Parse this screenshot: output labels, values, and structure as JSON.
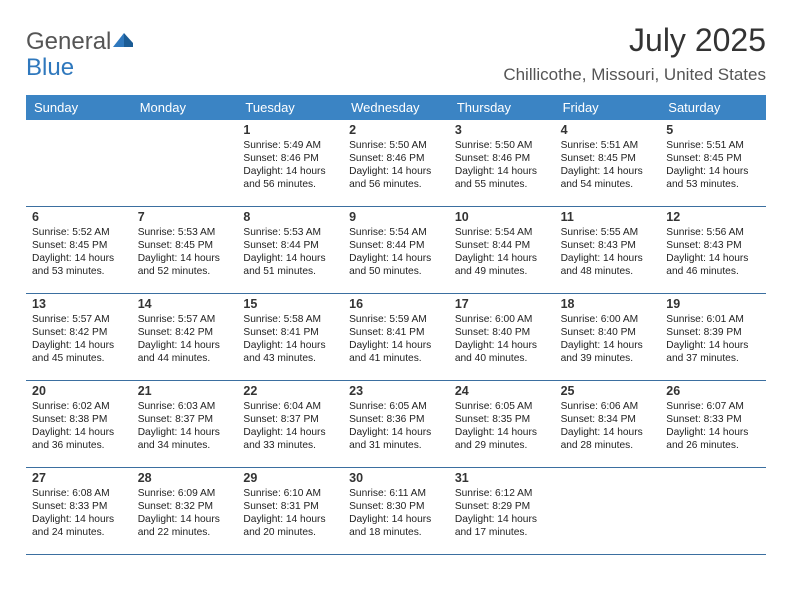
{
  "logo": {
    "word1": "General",
    "word2": "Blue"
  },
  "title": "July 2025",
  "location": "Chillicothe, Missouri, United States",
  "colors": {
    "header_bg": "#3b84c4",
    "header_text": "#ffffff",
    "rule": "#3b6fa0",
    "logo_blue": "#2f78bd"
  },
  "day_headers": [
    "Sunday",
    "Monday",
    "Tuesday",
    "Wednesday",
    "Thursday",
    "Friday",
    "Saturday"
  ],
  "weeks": [
    [
      null,
      null,
      {
        "n": "1",
        "sr": "Sunrise: 5:49 AM",
        "ss": "Sunset: 8:46 PM",
        "dl": "Daylight: 14 hours and 56 minutes."
      },
      {
        "n": "2",
        "sr": "Sunrise: 5:50 AM",
        "ss": "Sunset: 8:46 PM",
        "dl": "Daylight: 14 hours and 56 minutes."
      },
      {
        "n": "3",
        "sr": "Sunrise: 5:50 AM",
        "ss": "Sunset: 8:46 PM",
        "dl": "Daylight: 14 hours and 55 minutes."
      },
      {
        "n": "4",
        "sr": "Sunrise: 5:51 AM",
        "ss": "Sunset: 8:45 PM",
        "dl": "Daylight: 14 hours and 54 minutes."
      },
      {
        "n": "5",
        "sr": "Sunrise: 5:51 AM",
        "ss": "Sunset: 8:45 PM",
        "dl": "Daylight: 14 hours and 53 minutes."
      }
    ],
    [
      {
        "n": "6",
        "sr": "Sunrise: 5:52 AM",
        "ss": "Sunset: 8:45 PM",
        "dl": "Daylight: 14 hours and 53 minutes."
      },
      {
        "n": "7",
        "sr": "Sunrise: 5:53 AM",
        "ss": "Sunset: 8:45 PM",
        "dl": "Daylight: 14 hours and 52 minutes."
      },
      {
        "n": "8",
        "sr": "Sunrise: 5:53 AM",
        "ss": "Sunset: 8:44 PM",
        "dl": "Daylight: 14 hours and 51 minutes."
      },
      {
        "n": "9",
        "sr": "Sunrise: 5:54 AM",
        "ss": "Sunset: 8:44 PM",
        "dl": "Daylight: 14 hours and 50 minutes."
      },
      {
        "n": "10",
        "sr": "Sunrise: 5:54 AM",
        "ss": "Sunset: 8:44 PM",
        "dl": "Daylight: 14 hours and 49 minutes."
      },
      {
        "n": "11",
        "sr": "Sunrise: 5:55 AM",
        "ss": "Sunset: 8:43 PM",
        "dl": "Daylight: 14 hours and 48 minutes."
      },
      {
        "n": "12",
        "sr": "Sunrise: 5:56 AM",
        "ss": "Sunset: 8:43 PM",
        "dl": "Daylight: 14 hours and 46 minutes."
      }
    ],
    [
      {
        "n": "13",
        "sr": "Sunrise: 5:57 AM",
        "ss": "Sunset: 8:42 PM",
        "dl": "Daylight: 14 hours and 45 minutes."
      },
      {
        "n": "14",
        "sr": "Sunrise: 5:57 AM",
        "ss": "Sunset: 8:42 PM",
        "dl": "Daylight: 14 hours and 44 minutes."
      },
      {
        "n": "15",
        "sr": "Sunrise: 5:58 AM",
        "ss": "Sunset: 8:41 PM",
        "dl": "Daylight: 14 hours and 43 minutes."
      },
      {
        "n": "16",
        "sr": "Sunrise: 5:59 AM",
        "ss": "Sunset: 8:41 PM",
        "dl": "Daylight: 14 hours and 41 minutes."
      },
      {
        "n": "17",
        "sr": "Sunrise: 6:00 AM",
        "ss": "Sunset: 8:40 PM",
        "dl": "Daylight: 14 hours and 40 minutes."
      },
      {
        "n": "18",
        "sr": "Sunrise: 6:00 AM",
        "ss": "Sunset: 8:40 PM",
        "dl": "Daylight: 14 hours and 39 minutes."
      },
      {
        "n": "19",
        "sr": "Sunrise: 6:01 AM",
        "ss": "Sunset: 8:39 PM",
        "dl": "Daylight: 14 hours and 37 minutes."
      }
    ],
    [
      {
        "n": "20",
        "sr": "Sunrise: 6:02 AM",
        "ss": "Sunset: 8:38 PM",
        "dl": "Daylight: 14 hours and 36 minutes."
      },
      {
        "n": "21",
        "sr": "Sunrise: 6:03 AM",
        "ss": "Sunset: 8:37 PM",
        "dl": "Daylight: 14 hours and 34 minutes."
      },
      {
        "n": "22",
        "sr": "Sunrise: 6:04 AM",
        "ss": "Sunset: 8:37 PM",
        "dl": "Daylight: 14 hours and 33 minutes."
      },
      {
        "n": "23",
        "sr": "Sunrise: 6:05 AM",
        "ss": "Sunset: 8:36 PM",
        "dl": "Daylight: 14 hours and 31 minutes."
      },
      {
        "n": "24",
        "sr": "Sunrise: 6:05 AM",
        "ss": "Sunset: 8:35 PM",
        "dl": "Daylight: 14 hours and 29 minutes."
      },
      {
        "n": "25",
        "sr": "Sunrise: 6:06 AM",
        "ss": "Sunset: 8:34 PM",
        "dl": "Daylight: 14 hours and 28 minutes."
      },
      {
        "n": "26",
        "sr": "Sunrise: 6:07 AM",
        "ss": "Sunset: 8:33 PM",
        "dl": "Daylight: 14 hours and 26 minutes."
      }
    ],
    [
      {
        "n": "27",
        "sr": "Sunrise: 6:08 AM",
        "ss": "Sunset: 8:33 PM",
        "dl": "Daylight: 14 hours and 24 minutes."
      },
      {
        "n": "28",
        "sr": "Sunrise: 6:09 AM",
        "ss": "Sunset: 8:32 PM",
        "dl": "Daylight: 14 hours and 22 minutes."
      },
      {
        "n": "29",
        "sr": "Sunrise: 6:10 AM",
        "ss": "Sunset: 8:31 PM",
        "dl": "Daylight: 14 hours and 20 minutes."
      },
      {
        "n": "30",
        "sr": "Sunrise: 6:11 AM",
        "ss": "Sunset: 8:30 PM",
        "dl": "Daylight: 14 hours and 18 minutes."
      },
      {
        "n": "31",
        "sr": "Sunrise: 6:12 AM",
        "ss": "Sunset: 8:29 PM",
        "dl": "Daylight: 14 hours and 17 minutes."
      },
      null,
      null
    ]
  ]
}
